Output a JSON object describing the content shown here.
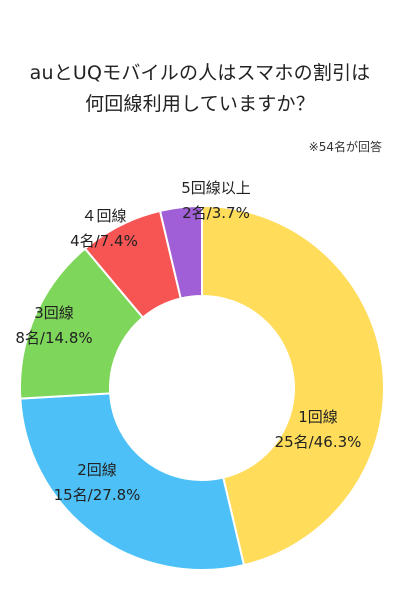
{
  "title_line1": "auとUQモバイルの人はスマホの割引は",
  "title_line2": "何回線利用していますか？",
  "note": "※54名が回答",
  "chart_data": {
    "type": "pie",
    "donut": true,
    "title": "auとUQモバイルの人はスマホの割引は何回線利用していますか？",
    "total_respondents": 54,
    "slices": [
      {
        "name": "1回線",
        "count": 25,
        "count_label": "25名",
        "percent": 46.3,
        "percent_label": "46.3%",
        "color": "#FFDC5A"
      },
      {
        "name": "2回線",
        "count": 15,
        "count_label": "15名",
        "percent": 27.8,
        "percent_label": "27.8%",
        "color": "#4DC1F7"
      },
      {
        "name": "3回線",
        "count": 8,
        "count_label": "8名",
        "percent": 14.8,
        "percent_label": "14.8%",
        "color": "#7ED65A"
      },
      {
        "name": "４回線",
        "count": 4,
        "count_label": "4名",
        "percent": 7.4,
        "percent_label": "7.4%",
        "color": "#F75454"
      },
      {
        "name": "5回線以上",
        "count": 2,
        "count_label": "2名",
        "percent": 3.7,
        "percent_label": "3.7%",
        "color": "#A05FD6"
      }
    ]
  }
}
